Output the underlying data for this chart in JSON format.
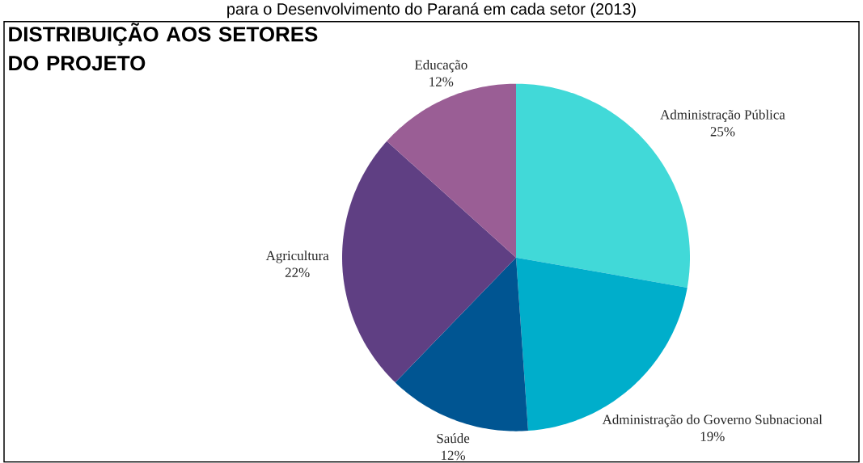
{
  "chart_data": {
    "type": "pie",
    "title": "DISTRIBUIÇÃO AOS SETORES DO PROJETO",
    "annotations": [
      "para o Desenvolvimento do Paraná em cada setor (2013)"
    ],
    "categories": [
      "Administração Pública",
      "Administração do Governo Subnacional",
      "Saúde",
      "Agricultura",
      "Educação"
    ],
    "values": [
      25,
      19,
      12,
      22,
      12
    ],
    "value_labels": [
      "25%",
      "19%",
      "12%",
      "22%",
      "12%"
    ],
    "colors": [
      "#41d9d8",
      "#00aecb",
      "#005592",
      "#5f3f83",
      "#9a5e95"
    ]
  }
}
